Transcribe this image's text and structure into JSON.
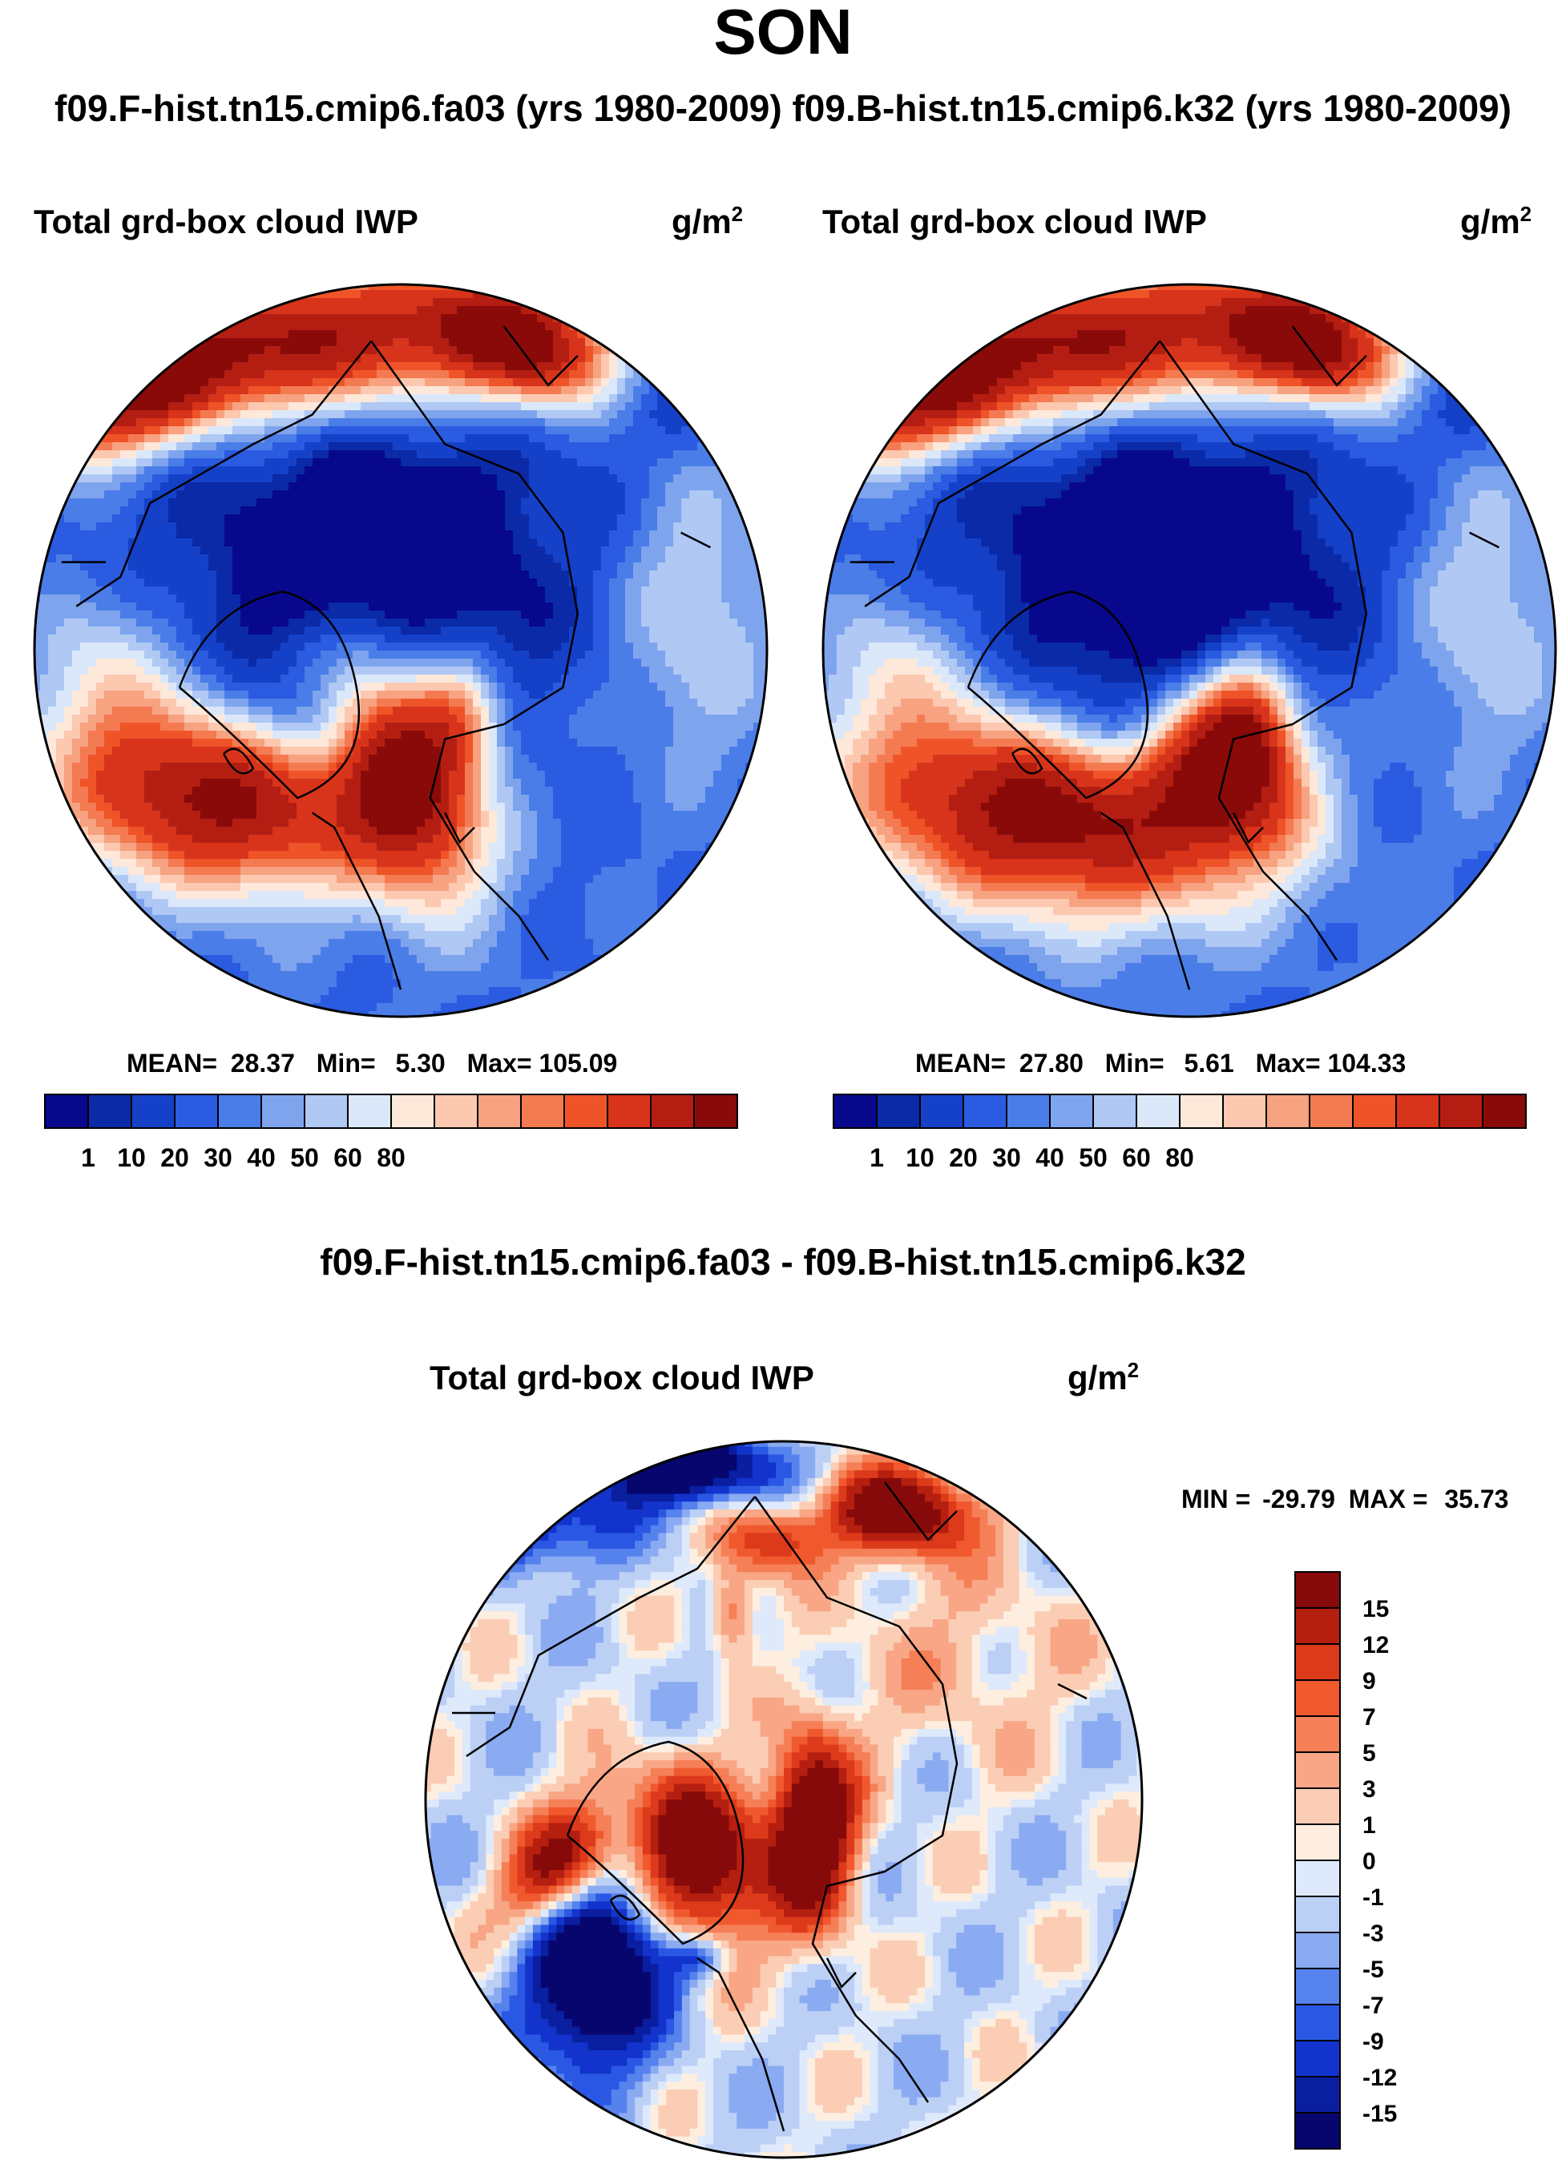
{
  "title": "SON",
  "run_title": "f09.F-hist.tn15.cmip6.fa03 (yrs 1980-2009)  f09.B-hist.tn15.cmip6.k32 (yrs 1980-2009)",
  "diff_title": "f09.F-hist.tn15.cmip6.fa03 - f09.B-hist.tn15.cmip6.k32",
  "palettes": {
    "abs": [
      "#08088c",
      "#0b2aa8",
      "#1441c8",
      "#2a5be0",
      "#4a7de8",
      "#7fa4ee",
      "#afc8f4",
      "#dbe8fa",
      "#fde8da",
      "#fcc8b0",
      "#f7a280",
      "#f47a52",
      "#ee5428",
      "#d8341b",
      "#b41e12",
      "#8a0a0a"
    ],
    "diff": [
      "#06066e",
      "#0a1ea0",
      "#1234cc",
      "#2a58e4",
      "#5582ec",
      "#8aaaf2",
      "#bcd0f6",
      "#dee9fb",
      "#fdeee0",
      "#fbcdb4",
      "#f8a686",
      "#f57f56",
      "#f0592e",
      "#dc3a1b",
      "#b51f10",
      "#860a0a"
    ]
  },
  "panels": [
    {
      "title": "Total grd-box cloud IWP",
      "units": "g/m",
      "units_exp": "2",
      "mean_label": "MEAN=",
      "mean": "28.37",
      "min_label": "Min=",
      "min": "5.30",
      "max_label": "Max=",
      "max": "105.09",
      "colorbar_labels": [
        "1",
        "10",
        "20",
        "30",
        "40",
        "50",
        "60",
        "80"
      ]
    },
    {
      "title": "Total grd-box cloud IWP",
      "units": "g/m",
      "units_exp": "2",
      "mean_label": "MEAN=",
      "mean": "27.80",
      "min_label": "Min=",
      "min": "5.61",
      "max_label": "Max=",
      "max": "104.33",
      "colorbar_labels": [
        "1",
        "10",
        "20",
        "30",
        "40",
        "50",
        "60",
        "80"
      ]
    }
  ],
  "diff_panel": {
    "title": "Total grd-box cloud IWP",
    "units": "g/m",
    "units_exp": "2",
    "min_label": "MIN =",
    "min": "-29.79",
    "max_label": "MAX =",
    "max": "35.73",
    "colorbar_labels": [
      "15",
      "12",
      "9",
      "7",
      "5",
      "3",
      "1",
      "0",
      "-1",
      "-3",
      "-5",
      "-7",
      "-9",
      "-12",
      "-15"
    ]
  },
  "chart_data": [
    {
      "type": "heatmap",
      "projection": "north polar stereographic",
      "title": "Total grd-box cloud IWP",
      "run": "f09.F-hist.tn15.cmip6.fa03 (yrs 1980-2009)",
      "units": "g/m2",
      "mean": 28.37,
      "min": 5.3,
      "max": 105.09,
      "contour_levels": [
        1,
        5,
        10,
        15,
        20,
        25,
        30,
        35,
        40,
        45,
        50,
        55,
        60,
        70,
        80
      ]
    },
    {
      "type": "heatmap",
      "projection": "north polar stereographic",
      "title": "Total grd-box cloud IWP",
      "run": "f09.B-hist.tn15.cmip6.k32 (yrs 1980-2009)",
      "units": "g/m2",
      "mean": 27.8,
      "min": 5.61,
      "max": 104.33,
      "contour_levels": [
        1,
        5,
        10,
        15,
        20,
        25,
        30,
        35,
        40,
        45,
        50,
        55,
        60,
        70,
        80
      ]
    },
    {
      "type": "heatmap",
      "projection": "north polar stereographic",
      "title": "Total grd-box cloud IWP",
      "run": "f09.F-hist.tn15.cmip6.fa03 - f09.B-hist.tn15.cmip6.k32",
      "units": "g/m2",
      "min": -29.79,
      "max": 35.73,
      "contour_levels": [
        -15,
        -12,
        -9,
        -7,
        -5,
        -3,
        -1,
        0,
        1,
        3,
        5,
        7,
        9,
        12,
        15
      ]
    }
  ]
}
